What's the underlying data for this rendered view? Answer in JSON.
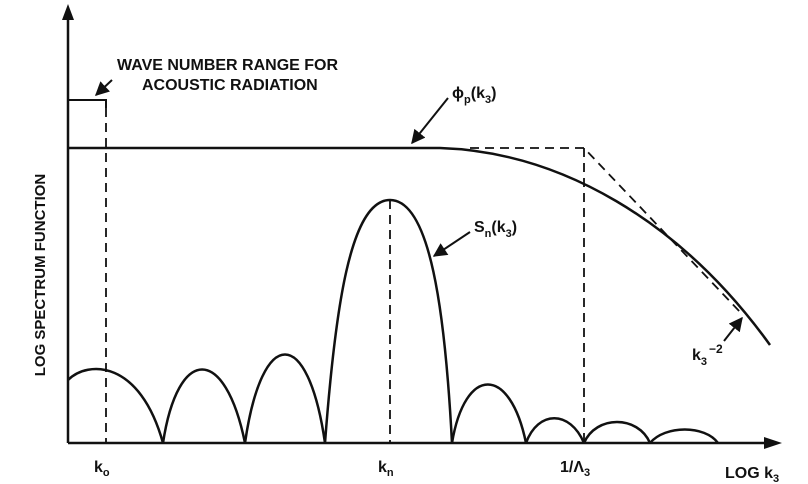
{
  "figure": {
    "y_axis_label": "LOG SPECTRUM FUNCTION",
    "x_axis_label": {
      "base": "LOG k",
      "sub": "3"
    },
    "acoustic_range_label": {
      "line1": "WAVE NUMBER RANGE FOR",
      "line2": "ACOUSTIC RADIATION"
    },
    "curve_labels": {
      "phi_p": {
        "base": "ϕ",
        "sub1": "p",
        "mid": "(k",
        "sub2": "3",
        "end": ")"
      },
      "s_n": {
        "base": "S",
        "sub1": "n",
        "mid": "(k",
        "sub2": "3",
        "end": ")"
      },
      "slope": {
        "base": "k",
        "sub": "3",
        "sup": "−2"
      }
    },
    "x_ticks": {
      "k0": {
        "base": "k",
        "sub": "o"
      },
      "kn": {
        "base": "k",
        "sub": "n"
      },
      "inv_lambda": {
        "base": "1/Λ",
        "sub": "3"
      }
    },
    "colors": {
      "ink": "#111111",
      "background": "#ffffff"
    }
  }
}
